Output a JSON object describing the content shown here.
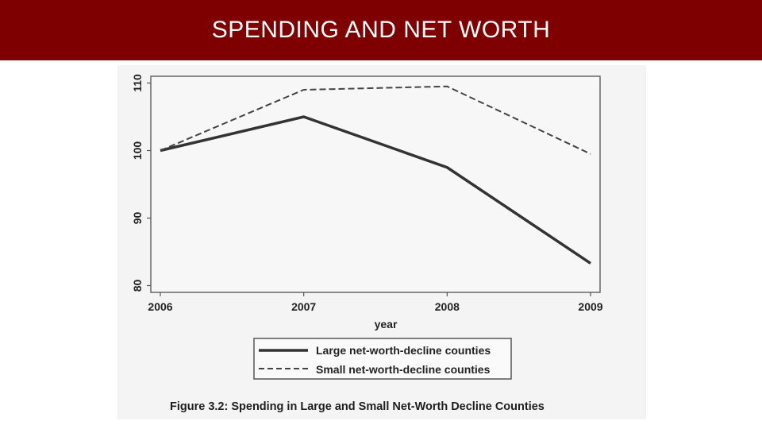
{
  "slide": {
    "title": "SPENDING AND NET WORTH"
  },
  "colors": {
    "title_bar": "#7f0000",
    "title_text": "#ffffff",
    "series_large": "#333333",
    "series_small": "#444444"
  },
  "chart_data": {
    "type": "line",
    "title": "",
    "xlabel": "year",
    "ylabel": "",
    "x": [
      "2006",
      "2007",
      "2008",
      "2009"
    ],
    "ylim": [
      79,
      111
    ],
    "yticks": [
      "80",
      "90",
      "100",
      "110"
    ],
    "series": [
      {
        "name": "Large net-worth-decline counties",
        "style": "solid",
        "values": [
          100,
          105,
          97.5,
          83.3
        ]
      },
      {
        "name": "Small net-worth-decline counties",
        "style": "dashed",
        "values": [
          100,
          109,
          109.5,
          99.5
        ]
      }
    ],
    "legend": "bottom-center",
    "caption": "Figure 3.2: Spending in Large and Small Net-Worth Decline Counties"
  }
}
